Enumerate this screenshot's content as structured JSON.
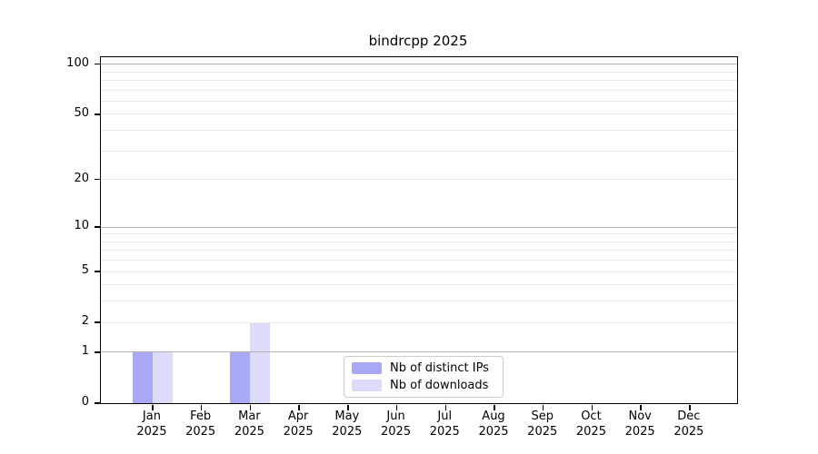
{
  "chart_data": {
    "type": "bar",
    "title": "bindrcpp 2025",
    "categories": [
      "Jan",
      "Feb",
      "Mar",
      "Apr",
      "May",
      "Jun",
      "Jul",
      "Aug",
      "Sep",
      "Oct",
      "Nov",
      "Dec"
    ],
    "x_tick_year": "2025",
    "series": [
      {
        "name": "Nb of distinct IPs",
        "color": "#a8a8f5",
        "values": [
          1,
          0,
          1,
          0,
          0,
          0,
          0,
          0,
          0,
          0,
          0,
          0
        ]
      },
      {
        "name": "Nb of downloads",
        "color": "#dcdcfa",
        "values": [
          1,
          0,
          2,
          0,
          0,
          0,
          0,
          0,
          0,
          0,
          0,
          0
        ]
      }
    ],
    "yscale": "log1p",
    "ylim": [
      0,
      110
    ],
    "xlim": [
      -1.06,
      11.97
    ],
    "y_ticks": [
      0,
      1,
      2,
      5,
      10,
      20,
      50,
      100
    ],
    "major_gridlines": [
      1,
      10,
      100
    ],
    "minor_gridlines": [
      2,
      3,
      4,
      5,
      6,
      7,
      8,
      9,
      20,
      30,
      40,
      50,
      60,
      70,
      80,
      90
    ],
    "grid": true,
    "legend_position": "lower center"
  },
  "legend": {
    "items": [
      {
        "label": "Nb of distinct IPs"
      },
      {
        "label": "Nb of downloads"
      }
    ]
  },
  "colors": {
    "major_grid": "#b2b2b2",
    "minor_grid": "#eaeaea",
    "spine": "#000000",
    "background": "#ffffff",
    "legend_border": "#cccccc",
    "text": "#000000"
  }
}
